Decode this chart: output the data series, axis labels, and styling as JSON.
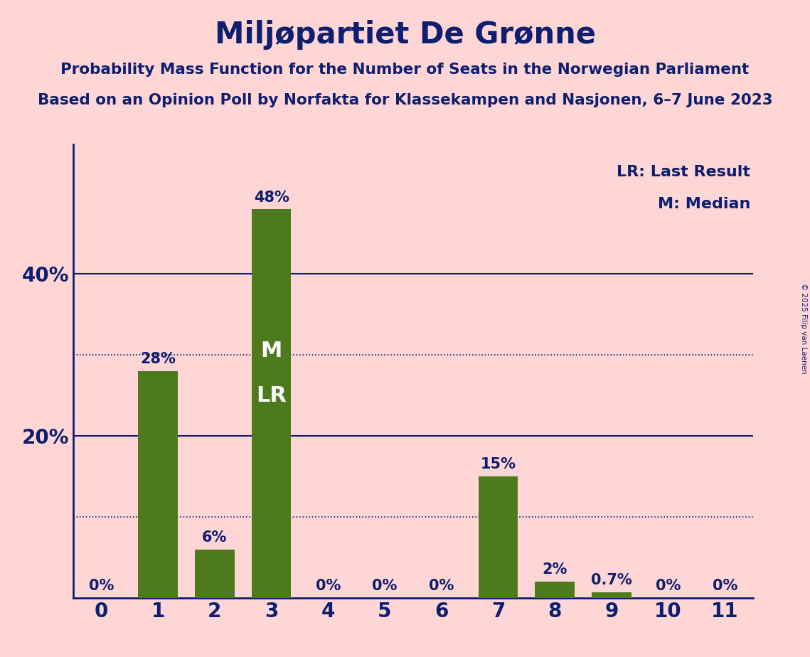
{
  "title": "Miljøpartiet De Grønne",
  "subtitle1": "Probability Mass Function for the Number of Seats in the Norwegian Parliament",
  "subtitle2": "Based on an Opinion Poll by Norfakta for Klassekampen and Nasjonen, 6–7 June 2023",
  "copyright": "© 2025 Filip van Laenen",
  "legend_lr": "LR: Last Result",
  "legend_m": "M: Median",
  "seats": [
    0,
    1,
    2,
    3,
    4,
    5,
    6,
    7,
    8,
    9,
    10,
    11
  ],
  "probabilities": [
    0.0,
    28.0,
    6.0,
    48.0,
    0.0,
    0.0,
    0.0,
    15.0,
    2.0,
    0.7,
    0.0,
    0.0
  ],
  "bar_color": "#4e7a1e",
  "bar_labels": [
    "0%",
    "28%",
    "6%",
    "48%",
    "0%",
    "0%",
    "0%",
    "15%",
    "2%",
    "0.7%",
    "0%",
    "0%"
  ],
  "median_seat": 3,
  "lr_seat": 3,
  "background_color": "#FFD6D6",
  "title_color": "#0d1f6e",
  "axis_color": "#0d1f6e",
  "label_color": "#0d1f6e",
  "label_color_white": "#ffffff",
  "solid_gridlines": [
    20,
    40
  ],
  "dotted_gridlines": [
    10,
    30
  ],
  "ylim": [
    0,
    56
  ],
  "xlim": [
    -0.5,
    11.5
  ]
}
